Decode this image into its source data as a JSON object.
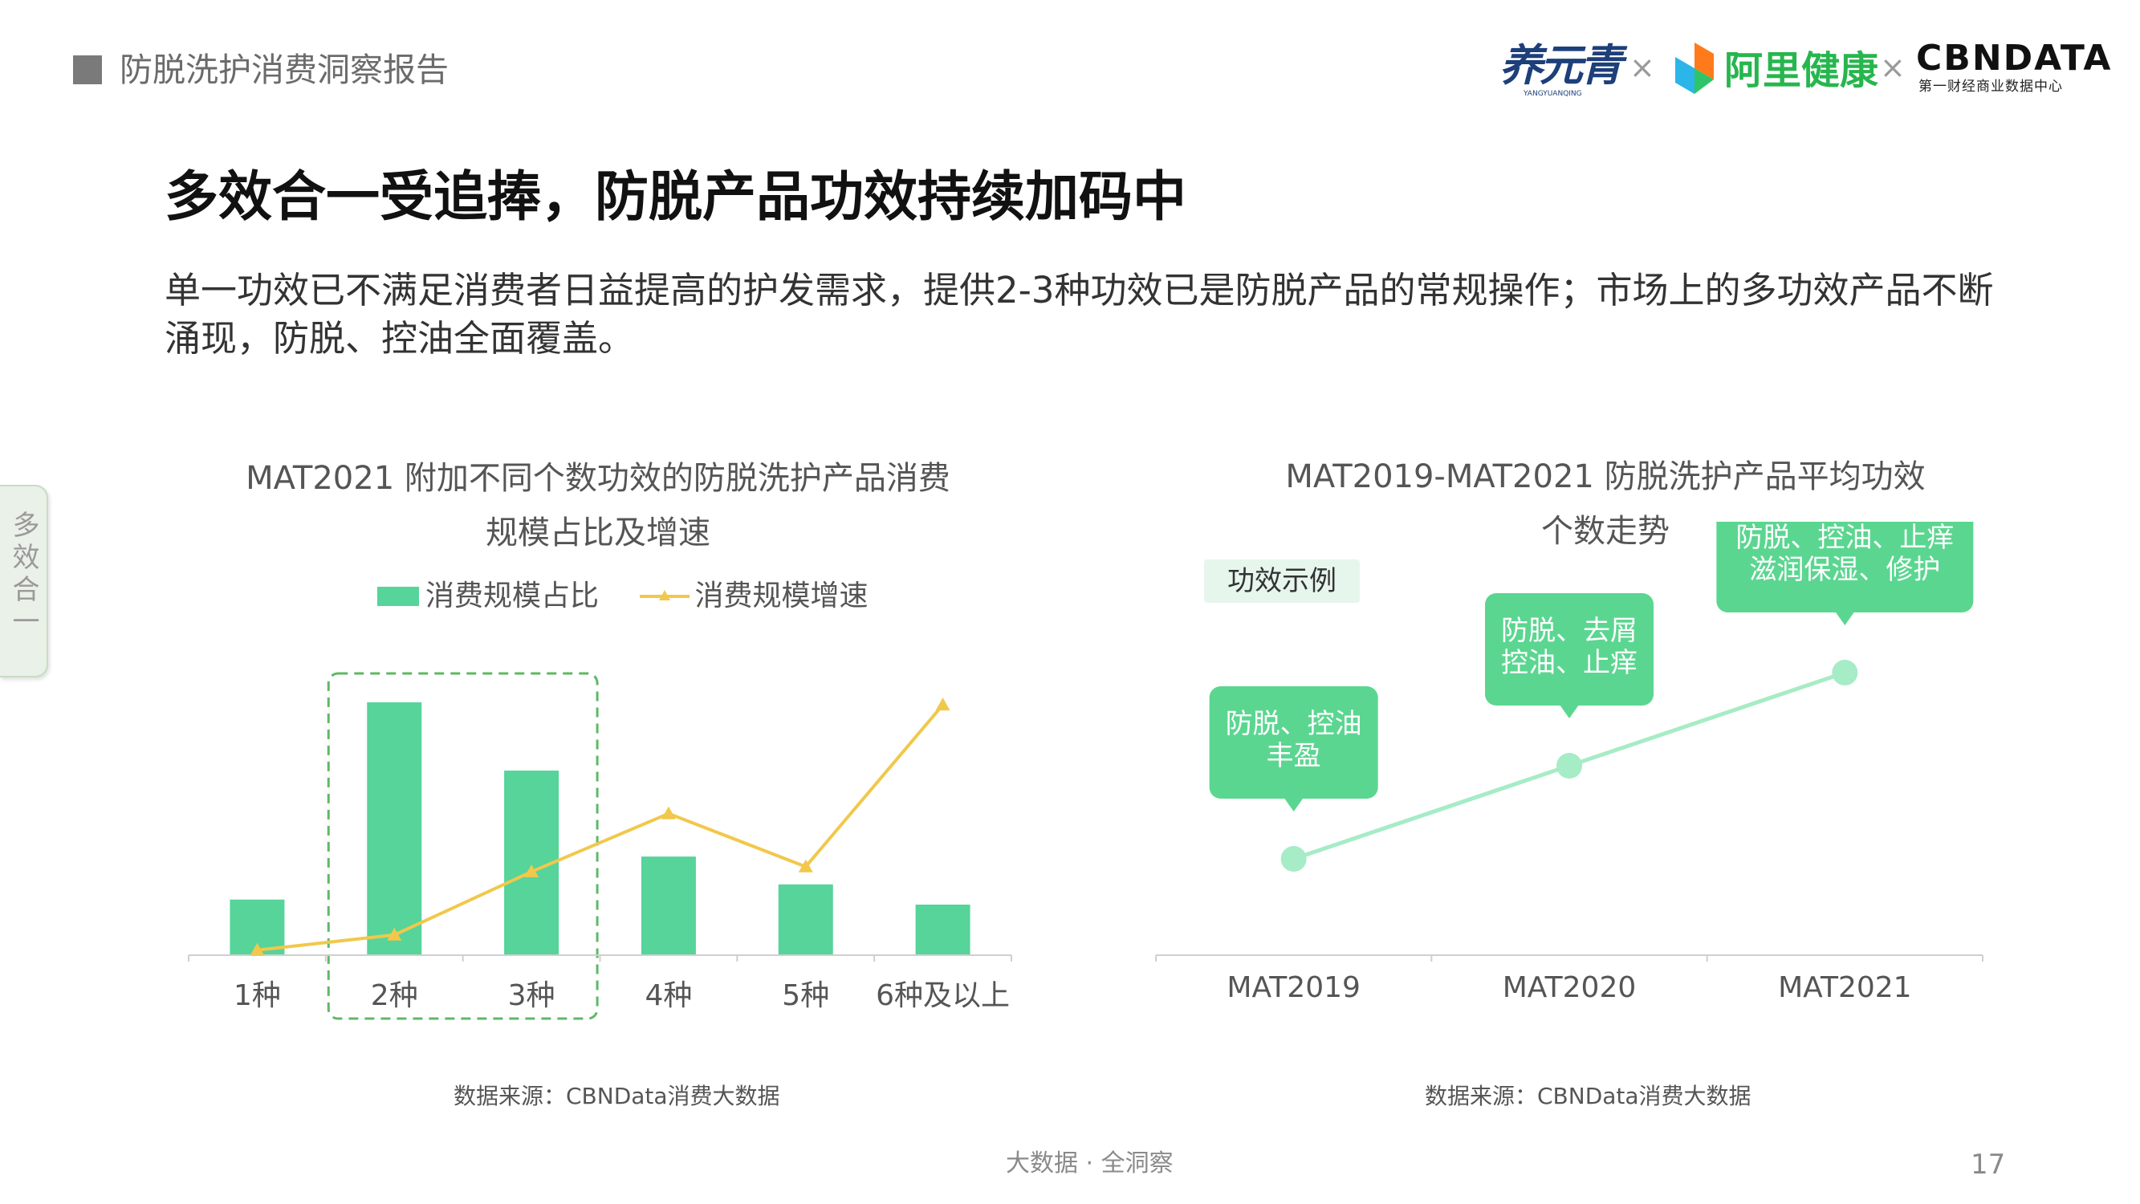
{
  "header": {
    "title": "防脱洗护消费洞察报告"
  },
  "logos": {
    "yyq": "养元青",
    "yyq_sub": "YANGYUANQING",
    "separator": "×",
    "alibaba_health": "阿里健康",
    "cbndata": "CBNDATA",
    "cbndata_sub": "第一财经商业数据中心"
  },
  "main_title": "多效合一受追捧，防脱产品功效持续加码中",
  "intro": "单一功效已不满足消费者日益提高的护发需求，提供2-3种功效已是防脱产品的常规操作；市场上的多功效产品不断涌现，防脱、控油全面覆盖。",
  "side_tab": "多效合一",
  "colors": {
    "bar": "#56d49a",
    "line": "#f1c84b",
    "dots": "#a6ecc6",
    "bubble": "#5bd690",
    "callout_bg": "#e6f6ec",
    "highlight": "#5fb866"
  },
  "chart_left": {
    "title_line1": "MAT2021 附加不同个数功效的防脱洗护产品消费",
    "title_line2": "规模占比及增速",
    "legend_bar": "消费规模占比",
    "legend_line": "消费规模增速",
    "source": "数据来源：CBNData消费大数据"
  },
  "chart_right": {
    "title_line1": "MAT2019-MAT2021 防脱洗护产品平均功效",
    "title_line2": "个数走势",
    "example_label": "功效示例",
    "source": "数据来源：CBNData消费大数据"
  },
  "chart_data": [
    {
      "type": "bar",
      "categories": [
        "1种",
        "2种",
        "3种",
        "4种",
        "5种",
        "6种及以上"
      ],
      "series": [
        {
          "name": "消费规模占比",
          "type": "bar",
          "values": [
            0.22,
            1.0,
            0.73,
            0.39,
            0.28,
            0.2
          ]
        },
        {
          "name": "消费规模增速",
          "type": "line",
          "values": [
            0.02,
            0.08,
            0.33,
            0.56,
            0.35,
            0.99
          ]
        }
      ],
      "highlight_categories": [
        "2种",
        "3种"
      ],
      "ylim": [
        0,
        1
      ]
    },
    {
      "type": "line",
      "categories": [
        "MAT2019",
        "MAT2020",
        "MAT2021"
      ],
      "series": [
        {
          "values": [
            1.0,
            2.0,
            3.0
          ]
        }
      ],
      "ylim": [
        0,
        4
      ],
      "annotations": [
        {
          "category": "MAT2019",
          "line1": "防脱、控油",
          "line2": "丰盈"
        },
        {
          "category": "MAT2020",
          "line1": "防脱、去屑",
          "line2": "控油、止痒"
        },
        {
          "category": "MAT2021",
          "line1": "防脱、控油、止痒",
          "line2": "滋润保湿、修护"
        }
      ]
    }
  ],
  "footer": {
    "text": "大数据 · 全洞察",
    "page": "17"
  }
}
